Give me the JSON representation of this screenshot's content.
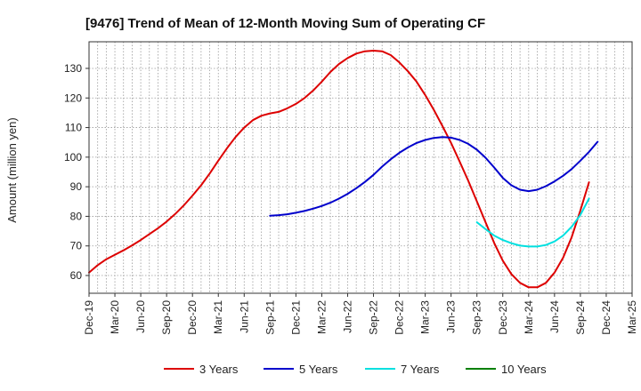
{
  "chart_data": {
    "type": "line",
    "title": "[9476]  Trend of Mean of 12-Month Moving Sum of Operating CF",
    "xlabel": "",
    "ylabel": "Amount (million yen)",
    "ylim": [
      54,
      139
    ],
    "yticks": [
      60,
      70,
      80,
      90,
      100,
      110,
      120,
      130
    ],
    "x_ticks": [
      "Dec-19",
      "Mar-20",
      "Jun-20",
      "Sep-20",
      "Dec-20",
      "Mar-21",
      "Jun-21",
      "Sep-21",
      "Dec-21",
      "Mar-22",
      "Jun-22",
      "Sep-22",
      "Dec-22",
      "Mar-23",
      "Jun-23",
      "Sep-23",
      "Dec-23",
      "Mar-24",
      "Jun-24",
      "Sep-24",
      "Dec-24",
      "Mar-25"
    ],
    "grid": true,
    "legend_position": "bottom",
    "series": [
      {
        "name": "3 Years",
        "color": "#dd0000",
        "start_index": 0,
        "values": [
          61,
          63.5,
          65.5,
          67,
          68.5,
          70.2,
          72,
          74,
          76,
          78.2,
          80.8,
          83.7,
          87,
          90.5,
          94.5,
          98.8,
          103,
          106.8,
          110,
          112.5,
          114,
          114.8,
          115.3,
          116.5,
          118,
          120,
          122.5,
          125.5,
          128.8,
          131.5,
          133.5,
          135,
          135.8,
          136,
          135.8,
          134.5,
          132,
          129,
          125.5,
          121,
          116,
          110.5,
          104.8,
          98.5,
          92,
          85,
          78,
          71,
          65,
          60.5,
          57.5,
          56,
          56,
          57.5,
          61,
          66,
          73,
          82,
          91.5
        ]
      },
      {
        "name": "5 Years",
        "color": "#0000cc",
        "start_index": 21,
        "values": [
          80.2,
          80.4,
          80.7,
          81.2,
          81.8,
          82.6,
          83.5,
          84.6,
          86,
          87.6,
          89.5,
          91.6,
          94,
          96.8,
          99.3,
          101.5,
          103.3,
          104.8,
          105.8,
          106.5,
          106.8,
          106.6,
          105.8,
          104.5,
          102.5,
          99.8,
          96.5,
          93,
          90.5,
          89,
          88.5,
          89,
          90.2,
          91.8,
          93.7,
          96,
          98.8,
          101.8,
          105.2
        ]
      },
      {
        "name": "7 Years",
        "color": "#00e0e0",
        "start_index": 45,
        "values": [
          78,
          75.7,
          73.5,
          72,
          70.9,
          70.1,
          69.8,
          69.8,
          70.3,
          71.5,
          73.5,
          76.5,
          80.5,
          86
        ]
      },
      {
        "name": "10 Years",
        "color": "#008000",
        "start_index": 0,
        "values": []
      }
    ]
  }
}
